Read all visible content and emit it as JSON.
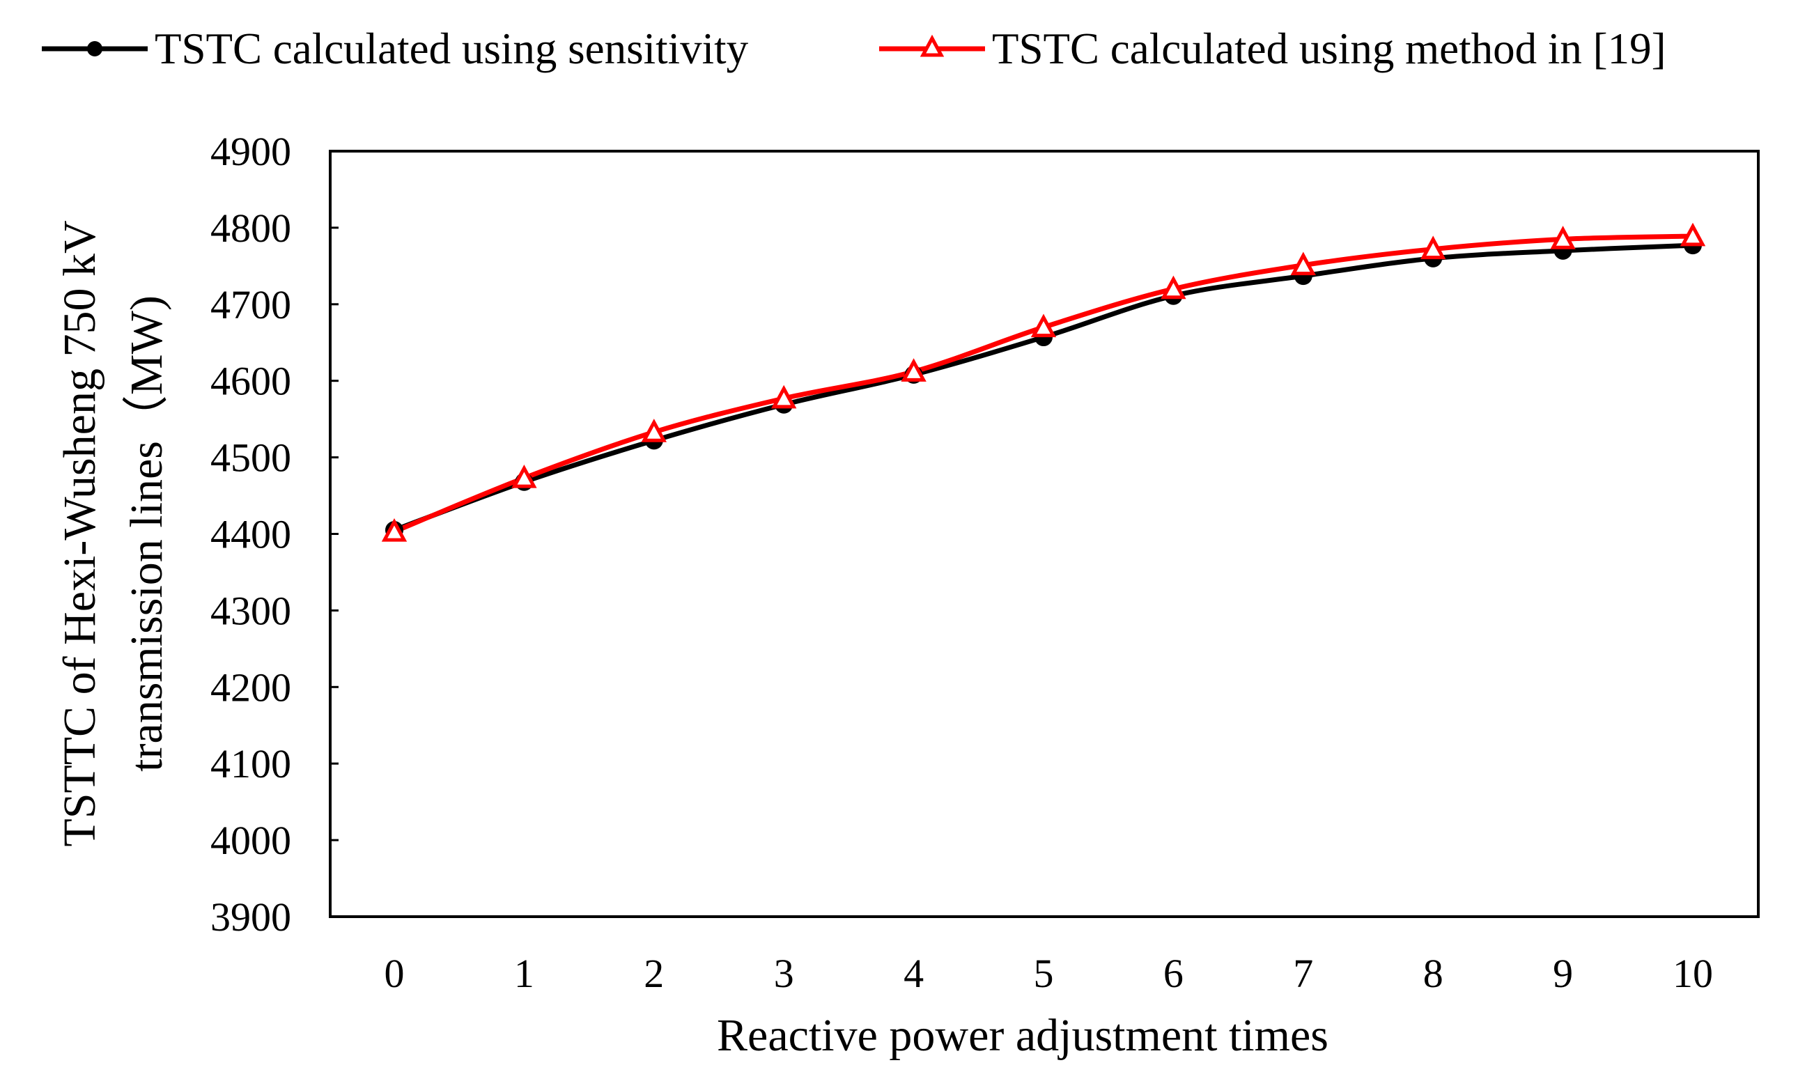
{
  "chart_data": {
    "type": "line",
    "title": "",
    "xlabel": "Reactive power adjustment times",
    "ylabel_lines": [
      "TSTTC of Hexi-Wusheng 750 kV",
      "transmission lines（MW)"
    ],
    "x": [
      0,
      1,
      2,
      3,
      4,
      5,
      6,
      7,
      8,
      9,
      10
    ],
    "x_tick_labels": [
      "0",
      "1",
      "2",
      "3",
      "4",
      "5",
      "6",
      "7",
      "8",
      "9",
      "10"
    ],
    "ylim": [
      3900,
      4900
    ],
    "y_ticks": [
      3900,
      4000,
      4100,
      4200,
      4300,
      4400,
      4500,
      4600,
      4700,
      4800,
      4900
    ],
    "y_tick_labels": [
      "3900",
      "4000",
      "4100",
      "4200",
      "4300",
      "4400",
      "4500",
      "4600",
      "4700",
      "4800",
      "4900"
    ],
    "grid": false,
    "legend_position": "top",
    "series": [
      {
        "name": "TSTC calculated using sensitivity",
        "color": "#000000",
        "marker": "circle",
        "values": [
          4405,
          4468,
          4522,
          4569,
          4608,
          4657,
          4711,
          4737,
          4760,
          4770,
          4777
        ]
      },
      {
        "name": "TSTC calculated using method in [19]",
        "color": "#ff0000",
        "marker": "triangle",
        "values": [
          4403,
          4473,
          4533,
          4577,
          4612,
          4670,
          4720,
          4751,
          4772,
          4785,
          4789
        ]
      }
    ]
  }
}
